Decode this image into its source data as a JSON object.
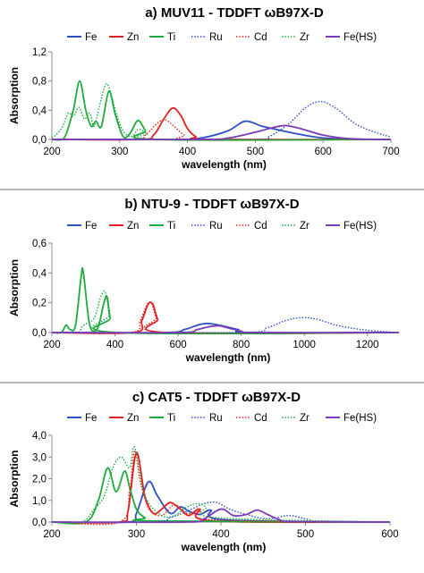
{
  "chart_data": [
    {
      "type": "line",
      "title": "a) MUV11 - TDDFT ωB97X-D",
      "xlabel": "wavelength (nm)",
      "ylabel": "Absorption",
      "xlim": [
        200,
        700
      ],
      "ylim": [
        0,
        1.2
      ],
      "xticks": [
        "200",
        "300",
        "400",
        "500",
        "600",
        "700"
      ],
      "xtick_values": [
        200,
        300,
        400,
        500,
        600,
        700
      ],
      "yticks": [
        "0,0",
        "0,4",
        "0,8",
        "1,2"
      ],
      "ytick_values": [
        0,
        0.4,
        0.8,
        1.2
      ],
      "grid": false,
      "legend": "top",
      "series": [
        {
          "name": "Fe",
          "color": "#2E4FC4",
          "dash": "solid",
          "x": [
            200,
            380,
            420,
            460,
            485,
            510,
            530,
            560,
            600,
            660,
            700
          ],
          "y": [
            0,
            0,
            0.02,
            0.12,
            0.25,
            0.18,
            0.14,
            0.08,
            0.02,
            0,
            0
          ]
        },
        {
          "name": "Zn",
          "color": "#E02020",
          "dash": "solid",
          "x": [
            200,
            330,
            350,
            365,
            378,
            390,
            400,
            412,
            430,
            700
          ],
          "y": [
            0,
            0,
            0.06,
            0.28,
            0.43,
            0.33,
            0.15,
            0.04,
            0,
            0
          ]
        },
        {
          "name": "Ti",
          "color": "#1FAA3C",
          "dash": "solid",
          "x": [
            200,
            215,
            222,
            232,
            241,
            250,
            258,
            265,
            273,
            284,
            293,
            305,
            315,
            327,
            338,
            350,
            700
          ],
          "y": [
            0,
            0,
            0.1,
            0.42,
            0.8,
            0.4,
            0.18,
            0.25,
            0.18,
            0.66,
            0.36,
            0.04,
            0.08,
            0.26,
            0.12,
            0,
            0
          ]
        },
        {
          "name": "Ru",
          "color": "#2E4FC4",
          "dash": "dot",
          "x": [
            200,
            490,
            520,
            550,
            575,
            597,
            620,
            650,
            690,
            700
          ],
          "y": [
            0,
            0,
            0.04,
            0.22,
            0.44,
            0.52,
            0.42,
            0.2,
            0.06,
            0.04
          ]
        },
        {
          "name": "Cd",
          "color": "#E02020",
          "dash": "dot",
          "x": [
            200,
            320,
            340,
            355,
            367,
            380,
            395,
            410,
            700
          ],
          "y": [
            0,
            0,
            0.08,
            0.22,
            0.27,
            0.18,
            0.06,
            0,
            0
          ]
        },
        {
          "name": "Zr",
          "color": "#1FAA3C",
          "dash": "dot",
          "x": [
            200,
            208,
            216,
            224,
            232,
            240,
            248,
            256,
            262,
            270,
            280,
            288,
            296,
            306,
            318,
            328,
            340,
            352,
            700
          ],
          "y": [
            0.02,
            0.08,
            0.18,
            0.36,
            0.32,
            0.44,
            0.28,
            0.36,
            0.18,
            0.45,
            0.76,
            0.6,
            0.32,
            0.1,
            0.04,
            0.14,
            0.08,
            0,
            0
          ]
        },
        {
          "name": "Fe(HS)",
          "color": "#7A3CB8",
          "dash": "solid",
          "x": [
            200,
            420,
            460,
            500,
            525,
            545,
            570,
            600,
            640,
            700
          ],
          "y": [
            0,
            0,
            0.02,
            0.1,
            0.16,
            0.19,
            0.14,
            0.06,
            0.01,
            0
          ]
        }
      ]
    },
    {
      "type": "line",
      "title": "b) NTU-9 - TDDFT ωB97X-D",
      "xlabel": "wavelength (nm)",
      "ylabel": "Absorption",
      "xlim": [
        200,
        1300
      ],
      "ylim": [
        0,
        0.6
      ],
      "xticks": [
        "200",
        "400",
        "600",
        "800",
        "1000",
        "1200"
      ],
      "xtick_values": [
        200,
        400,
        600,
        800,
        1000,
        1200
      ],
      "yticks": [
        "0,0",
        "0,2",
        "0,4",
        "0,6"
      ],
      "ytick_values": [
        0,
        0.2,
        0.4,
        0.6
      ],
      "grid": false,
      "legend": "top",
      "series": [
        {
          "name": "Fe",
          "color": "#2E4FC4",
          "dash": "solid",
          "x": [
            200,
            560,
            620,
            670,
            700,
            740,
            790,
            830,
            1300
          ],
          "y": [
            0,
            0,
            0.02,
            0.055,
            0.06,
            0.045,
            0.02,
            0,
            0
          ]
        },
        {
          "name": "Zn",
          "color": "#E02020",
          "dash": "solid",
          "x": [
            200,
            460,
            485,
            505,
            520,
            535,
            560,
            1300
          ],
          "y": [
            0,
            0,
            0.08,
            0.19,
            0.19,
            0.09,
            0,
            0
          ]
        },
        {
          "name": "Ti",
          "color": "#1FAA3C",
          "dash": "solid",
          "x": [
            200,
            230,
            245,
            258,
            275,
            293,
            300,
            320,
            345,
            365,
            375,
            385,
            405,
            1300
          ],
          "y": [
            0,
            0,
            0.05,
            0.02,
            0.05,
            0.38,
            0.4,
            0.05,
            0.03,
            0.2,
            0.24,
            0.1,
            0,
            0
          ]
        },
        {
          "name": "Ru",
          "color": "#2E4FC4",
          "dash": "dot",
          "x": [
            200,
            800,
            880,
            940,
            990,
            1040,
            1100,
            1180,
            1260,
            1300
          ],
          "y": [
            0,
            0,
            0.03,
            0.08,
            0.1,
            0.09,
            0.05,
            0.02,
            0.005,
            0
          ]
        },
        {
          "name": "Cd",
          "color": "#E02020",
          "dash": "dot",
          "x": [
            200,
            450,
            480,
            500,
            515,
            530,
            555,
            1300
          ],
          "y": [
            0,
            0,
            0.08,
            0.18,
            0.2,
            0.1,
            0,
            0
          ]
        },
        {
          "name": "Zr",
          "color": "#1FAA3C",
          "dash": "dot",
          "x": [
            200,
            280,
            295,
            310,
            335,
            355,
            370,
            382,
            400,
            1300
          ],
          "y": [
            0,
            0,
            0.04,
            0.06,
            0.1,
            0.24,
            0.27,
            0.12,
            0,
            0
          ]
        },
        {
          "name": "Fe(HS)",
          "color": "#7A3CB8",
          "dash": "solid",
          "x": [
            200,
            600,
            660,
            700,
            730,
            760,
            800,
            850,
            1300
          ],
          "y": [
            0,
            0,
            0.02,
            0.04,
            0.045,
            0.03,
            0.01,
            0,
            0
          ]
        }
      ]
    },
    {
      "type": "line",
      "title": "c) CAT5 - TDDFT ωB97X-D",
      "xlabel": "wavelength (nm)",
      "ylabel": "Absorption",
      "xlim": [
        200,
        600
      ],
      "ylim": [
        0,
        4
      ],
      "xticks": [
        "200",
        "300",
        "400",
        "500",
        "600"
      ],
      "xtick_values": [
        200,
        300,
        400,
        500,
        600
      ],
      "yticks": [
        "0,0",
        "1,0",
        "2,0",
        "3,0",
        "4,0"
      ],
      "ytick_values": [
        0,
        1,
        2,
        3,
        4
      ],
      "grid": false,
      "legend": "top",
      "series": [
        {
          "name": "Fe",
          "color": "#2E4FC4",
          "dash": "solid",
          "x": [
            200,
            290,
            300,
            314,
            325,
            340,
            352,
            362,
            375,
            388,
            405,
            600
          ],
          "y": [
            0,
            0,
            0.4,
            1.85,
            1.2,
            0.4,
            0.7,
            0.5,
            0.35,
            0.55,
            0.1,
            0
          ]
        },
        {
          "name": "Zn",
          "color": "#E02020",
          "dash": "solid",
          "x": [
            200,
            280,
            290,
            300,
            310,
            320,
            330,
            340,
            352,
            362,
            375,
            390,
            600
          ],
          "y": [
            0,
            0,
            0.5,
            3.2,
            1.2,
            0.4,
            0.6,
            0.9,
            0.6,
            0.3,
            0.6,
            0.05,
            0
          ]
        },
        {
          "name": "Ti",
          "color": "#1FAA3C",
          "dash": "solid",
          "x": [
            200,
            240,
            255,
            266,
            276,
            286,
            292,
            300,
            310,
            320,
            600
          ],
          "y": [
            0,
            0,
            1.0,
            2.5,
            1.4,
            2.35,
            1.6,
            0.6,
            0.2,
            0.05,
            0
          ]
        },
        {
          "name": "Ru",
          "color": "#2E4FC4",
          "dash": "dot",
          "x": [
            200,
            320,
            340,
            360,
            380,
            395,
            410,
            430,
            455,
            480,
            500,
            520,
            600
          ],
          "y": [
            0,
            0,
            0.2,
            0.5,
            0.85,
            0.9,
            0.6,
            0.35,
            0.15,
            0.3,
            0.15,
            0.02,
            0
          ]
        },
        {
          "name": "Cd",
          "color": "#E02020",
          "dash": "dot",
          "x": [
            200,
            280,
            292,
            298,
            305,
            315,
            330,
            345,
            360,
            375,
            390,
            600
          ],
          "y": [
            0,
            0,
            1.5,
            3.3,
            1.8,
            0.6,
            0.3,
            0.8,
            0.4,
            0.5,
            0.1,
            0
          ]
        },
        {
          "name": "Zr",
          "color": "#1FAA3C",
          "dash": "dot",
          "x": [
            200,
            235,
            250,
            262,
            272,
            282,
            292,
            298,
            310,
            330,
            345,
            360,
            372,
            382,
            395,
            600
          ],
          "y": [
            0,
            0,
            0.6,
            1.2,
            2.5,
            3.0,
            2.5,
            3.45,
            1.2,
            0.3,
            0.3,
            0.7,
            0.85,
            0.7,
            0.2,
            0
          ]
        },
        {
          "name": "Fe(HS)",
          "color": "#7A3CB8",
          "dash": "solid",
          "x": [
            200,
            360,
            380,
            400,
            415,
            430,
            443,
            455,
            470,
            485,
            600
          ],
          "y": [
            0,
            0,
            0.15,
            0.6,
            0.3,
            0.35,
            0.55,
            0.35,
            0.1,
            0.02,
            0
          ]
        }
      ]
    }
  ]
}
